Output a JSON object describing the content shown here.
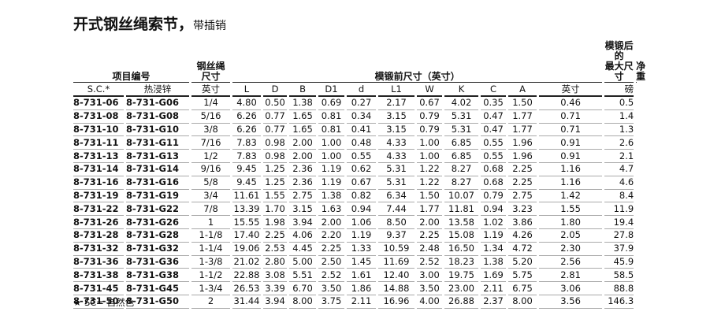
{
  "header": {
    "title": "开式钢丝绳索节，",
    "subtitle": "带插销"
  },
  "table": {
    "group_headers": [
      "项目编号",
      "钢丝绳\n尺寸",
      "模锻前尺寸（英寸）",
      "模锻后的\n最大尺寸",
      "净重"
    ],
    "columns": [
      "S.C.*",
      "热浸锌",
      "英寸",
      "L",
      "D",
      "B",
      "D1",
      "d",
      "L1",
      "W",
      "K",
      "C",
      "A",
      "英寸",
      "磅"
    ],
    "rows": [
      [
        "8-731-06",
        "8-731-G06",
        "1/4",
        "4.80",
        "0.50",
        "1.38",
        "0.69",
        "0.27",
        "2.17",
        "0.67",
        "4.02",
        "0.35",
        "1.50",
        "0.46",
        "0.5"
      ],
      [
        "8-731-08",
        "8-731-G08",
        "5/16",
        "6.26",
        "0.77",
        "1.65",
        "0.81",
        "0.34",
        "3.15",
        "0.79",
        "5.31",
        "0.47",
        "1.77",
        "0.71",
        "1.4"
      ],
      [
        "8-731-10",
        "8-731-G10",
        "3/8",
        "6.26",
        "0.77",
        "1.65",
        "0.81",
        "0.41",
        "3.15",
        "0.79",
        "5.31",
        "0.47",
        "1.77",
        "0.71",
        "1.3"
      ],
      [
        "8-731-11",
        "8-731-G11",
        "7/16",
        "7.83",
        "0.98",
        "2.00",
        "1.00",
        "0.48",
        "4.33",
        "1.00",
        "6.85",
        "0.55",
        "1.96",
        "0.91",
        "2.6"
      ],
      [
        "8-731-13",
        "8-731-G13",
        "1/2",
        "7.83",
        "0.98",
        "2.00",
        "1.00",
        "0.55",
        "4.33",
        "1.00",
        "6.85",
        "0.55",
        "1.96",
        "0.91",
        "2.1"
      ],
      [
        "8-731-14",
        "8-731-G14",
        "9/16",
        "9.45",
        "1.25",
        "2.36",
        "1.19",
        "0.62",
        "5.31",
        "1.22",
        "8.27",
        "0.68",
        "2.25",
        "1.16",
        "4.7"
      ],
      [
        "8-731-16",
        "8-731-G16",
        "5/8",
        "9.45",
        "1.25",
        "2.36",
        "1.19",
        "0.67",
        "5.31",
        "1.22",
        "8.27",
        "0.68",
        "2.25",
        "1.16",
        "4.6"
      ],
      [
        "8-731-19",
        "8-731-G19",
        "3/4",
        "11.61",
        "1.55",
        "2.75",
        "1.38",
        "0.82",
        "6.34",
        "1.50",
        "10.07",
        "0.79",
        "2.75",
        "1.42",
        "8.4"
      ],
      [
        "8-731-22",
        "8-731-G22",
        "7/8",
        "13.39",
        "1.70",
        "3.15",
        "1.63",
        "0.94",
        "7.44",
        "1.77",
        "11.81",
        "0.94",
        "3.23",
        "1.55",
        "11.9"
      ],
      [
        "8-731-26",
        "8-731-G26",
        "1",
        "15.55",
        "1.98",
        "3.94",
        "2.00",
        "1.06",
        "8.50",
        "2.00",
        "13.58",
        "1.02",
        "3.86",
        "1.80",
        "19.4"
      ],
      [
        "8-731-28",
        "8-731-G28",
        "1-1/8",
        "17.40",
        "2.25",
        "4.06",
        "2.20",
        "1.19",
        "9.37",
        "2.25",
        "15.08",
        "1.19",
        "4.26",
        "2.05",
        "27.8"
      ],
      [
        "8-731-32",
        "8-731-G32",
        "1-1/4",
        "19.06",
        "2.53",
        "4.45",
        "2.25",
        "1.33",
        "10.59",
        "2.48",
        "16.50",
        "1.34",
        "4.72",
        "2.30",
        "37.9"
      ],
      [
        "8-731-36",
        "8-731-G36",
        "1-3/8",
        "21.02",
        "2.80",
        "5.00",
        "2.50",
        "1.45",
        "11.69",
        "2.52",
        "18.23",
        "1.38",
        "5.20",
        "2.56",
        "45.9"
      ],
      [
        "8-731-38",
        "8-731-G38",
        "1-1/2",
        "22.88",
        "3.08",
        "5.51",
        "2.52",
        "1.61",
        "12.40",
        "3.00",
        "19.75",
        "1.69",
        "5.75",
        "2.81",
        "58.5"
      ],
      [
        "8-731-45",
        "8-731-G45",
        "1-3/4",
        "26.53",
        "3.39",
        "6.70",
        "3.50",
        "1.86",
        "14.88",
        "3.50",
        "23.00",
        "2.11",
        "6.75",
        "3.06",
        "88.8"
      ],
      [
        "8-731-50",
        "8-731-G50",
        "2",
        "31.44",
        "3.94",
        "8.00",
        "3.75",
        "2.11",
        "16.96",
        "4.00",
        "26.88",
        "2.37",
        "8.00",
        "3.56",
        "146.3"
      ]
    ]
  },
  "footnote": "★ SC= 自然色"
}
